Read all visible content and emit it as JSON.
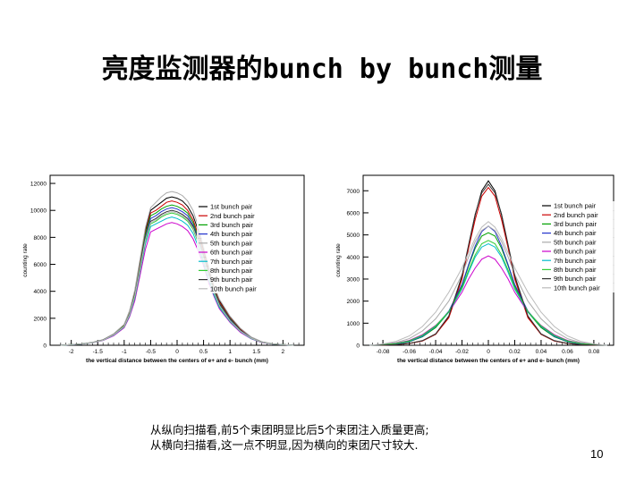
{
  "slide": {
    "title": "亮度监测器的bunch by bunch测量",
    "caption_line1": "从纵向扫描看,前5个束团明显比后5个束团注入质量更高;",
    "caption_line2": "从横向扫描看,这一点不明显,因为横向的束团尺寸较大.",
    "page_number": "10"
  },
  "chart_data": [
    {
      "type": "line",
      "xlabel": "the vertical distance between the centers of e+ and e- bunch (mm)",
      "ylabel": "counting rate",
      "xlim": [
        -2.4,
        2.4
      ],
      "ylim": [
        0,
        12600
      ],
      "xticks": [
        -2,
        -1.5,
        -1,
        -0.5,
        0,
        0.5,
        1,
        1.5,
        2
      ],
      "xtick_labels": [
        "-2",
        "-1.5",
        "-1",
        "-0.5",
        "0",
        "0.5",
        "1",
        "1.5",
        "2"
      ],
      "yticks": [
        0,
        2000,
        4000,
        6000,
        8000,
        10000,
        12000
      ],
      "ytick_labels": [
        "0",
        "2000",
        "4000",
        "6000",
        "8000",
        "10000",
        "12000"
      ],
      "legend_position": "top-right",
      "legend": [
        "1st bunch pair",
        "2nd bunch pair",
        "3rd bunch pair",
        "4th bunch pair",
        "5th bunch pair",
        "6th bunch pair",
        "7th bunch pair",
        "8th bunch pair",
        "9th bunch pair",
        "10th bunch pair"
      ],
      "x": [
        -2.2,
        -2.0,
        -1.8,
        -1.6,
        -1.4,
        -1.2,
        -1.0,
        -0.9,
        -0.8,
        -0.7,
        -0.6,
        -0.5,
        -0.4,
        -0.3,
        -0.2,
        -0.1,
        0.0,
        0.1,
        0.2,
        0.3,
        0.4,
        0.5,
        0.6,
        0.7,
        0.8,
        1.0,
        1.2,
        1.4,
        1.6,
        1.8,
        2.0,
        2.2
      ],
      "series": [
        {
          "color": "#000000",
          "values": [
            0,
            50,
            100,
            200,
            400,
            800,
            1500,
            2500,
            4000,
            6200,
            8500,
            10000,
            10300,
            10600,
            10900,
            11000,
            10900,
            10700,
            10300,
            9600,
            8500,
            7100,
            5600,
            4300,
            3300,
            2100,
            1200,
            600,
            250,
            100,
            50,
            0
          ]
        },
        {
          "color": "#cc0000",
          "values": [
            0,
            50,
            100,
            200,
            400,
            800,
            1500,
            2400,
            3900,
            6000,
            8300,
            9800,
            10000,
            10300,
            10600,
            10700,
            10600,
            10400,
            10000,
            9300,
            8200,
            6900,
            5400,
            4200,
            3200,
            2000,
            1150,
            580,
            240,
            100,
            50,
            0
          ]
        },
        {
          "color": "#00a000",
          "values": [
            0,
            50,
            100,
            200,
            400,
            800,
            1450,
            2350,
            3800,
            5900,
            8200,
            9600,
            9800,
            10100,
            10300,
            10400,
            10300,
            10100,
            9800,
            9100,
            8000,
            6700,
            5300,
            4100,
            3100,
            1950,
            1100,
            560,
            230,
            100,
            50,
            0
          ]
        },
        {
          "color": "#2233cc",
          "values": [
            0,
            50,
            100,
            190,
            380,
            780,
            1400,
            2300,
            3700,
            5800,
            8000,
            9400,
            9600,
            9900,
            10100,
            10200,
            10100,
            9900,
            9600,
            8900,
            7900,
            6600,
            5200,
            4000,
            3050,
            1900,
            1080,
            550,
            230,
            100,
            50,
            0
          ]
        },
        {
          "color": "#aaaaaa",
          "values": [
            0,
            50,
            110,
            220,
            420,
            850,
            1550,
            2550,
            4100,
            6400,
            8700,
            10200,
            10600,
            11000,
            11300,
            11400,
            11300,
            11100,
            10700,
            10000,
            8800,
            7300,
            5800,
            4400,
            3400,
            2150,
            1250,
            620,
            260,
            110,
            50,
            0
          ]
        },
        {
          "color": "#cc00cc",
          "values": [
            0,
            40,
            90,
            180,
            350,
            700,
            1300,
            2100,
            3300,
            5200,
            7100,
            8400,
            8600,
            8800,
            9000,
            9100,
            9000,
            8800,
            8500,
            7900,
            7000,
            5900,
            4600,
            3600,
            2700,
            1700,
            950,
            480,
            200,
            90,
            40,
            0
          ]
        },
        {
          "color": "#00bbcc",
          "values": [
            0,
            40,
            95,
            190,
            370,
            740,
            1350,
            2200,
            3500,
            5500,
            7500,
            8800,
            9000,
            9200,
            9400,
            9500,
            9400,
            9200,
            8900,
            8300,
            7300,
            6100,
            4800,
            3700,
            2800,
            1750,
            1000,
            500,
            210,
            95,
            40,
            0
          ]
        },
        {
          "color": "#33cc33",
          "values": [
            0,
            45,
            100,
            195,
            380,
            760,
            1380,
            2250,
            3600,
            5600,
            7700,
            9000,
            9200,
            9500,
            9700,
            9800,
            9700,
            9500,
            9200,
            8600,
            7600,
            6300,
            5000,
            3850,
            2900,
            1800,
            1030,
            520,
            220,
            98,
            45,
            0
          ]
        },
        {
          "color": "#333333",
          "values": [
            0,
            45,
            100,
            200,
            390,
            780,
            1420,
            2300,
            3700,
            5800,
            7900,
            9200,
            9400,
            9700,
            9900,
            10000,
            9900,
            9700,
            9400,
            8800,
            7800,
            6500,
            5100,
            3950,
            3000,
            1850,
            1060,
            540,
            225,
            100,
            45,
            0
          ]
        },
        {
          "color": "#bbbbbb",
          "values": [
            0,
            45,
            98,
            195,
            380,
            770,
            1400,
            2280,
            3650,
            5700,
            7800,
            9100,
            9300,
            9600,
            9800,
            9900,
            9800,
            9600,
            9300,
            8700,
            7700,
            6400,
            5050,
            3900,
            2950,
            1820,
            1040,
            530,
            220,
            98,
            45,
            0
          ]
        }
      ]
    },
    {
      "type": "line",
      "xlabel": "the vertical distance between the centers of e+ and e- bunch (mm)",
      "ylabel": "counting rate",
      "xlim": [
        -0.095,
        0.095
      ],
      "ylim": [
        0,
        7700
      ],
      "xticks": [
        -0.08,
        -0.06,
        -0.04,
        -0.02,
        0,
        0.02,
        0.04,
        0.06,
        0.08
      ],
      "xtick_labels": [
        "-0.08",
        "-0.06",
        "-0.04",
        "-0.02",
        "0",
        "0.02",
        "0.04",
        "0.06",
        "0.08"
      ],
      "yticks": [
        0,
        1000,
        2000,
        3000,
        4000,
        5000,
        6000,
        7000
      ],
      "ytick_labels": [
        "0",
        "1000",
        "2000",
        "3000",
        "4000",
        "5000",
        "6000",
        "7000"
      ],
      "legend_position": "top-right",
      "legend": [
        "1st bunch pair",
        "2nd bunch pair",
        "3rd bunch pair",
        "4th bunch pair",
        "5th bunch pair",
        "6th bunch pair",
        "7th bunch pair",
        "8th bunch pair",
        "9th bunch pair",
        "10th bunch pair"
      ],
      "x": [
        -0.09,
        -0.08,
        -0.07,
        -0.06,
        -0.05,
        -0.04,
        -0.03,
        -0.02,
        -0.015,
        -0.01,
        -0.005,
        0.0,
        0.005,
        0.01,
        0.015,
        0.02,
        0.03,
        0.04,
        0.05,
        0.06,
        0.07,
        0.08,
        0.09
      ],
      "series": [
        {
          "color": "#000000",
          "values": [
            0,
            10,
            30,
            80,
            200,
            500,
            1300,
            3100,
            4500,
            5900,
            7000,
            7450,
            7000,
            5900,
            4500,
            3100,
            1300,
            500,
            200,
            80,
            30,
            10,
            0
          ]
        },
        {
          "color": "#cc0000",
          "values": [
            0,
            10,
            30,
            80,
            200,
            500,
            1250,
            3000,
            4400,
            5700,
            6750,
            7150,
            6750,
            5700,
            4400,
            3000,
            1250,
            500,
            200,
            80,
            30,
            10,
            0
          ]
        },
        {
          "color": "#00a000",
          "values": [
            0,
            20,
            60,
            160,
            380,
            800,
            1500,
            2700,
            3600,
            4400,
            4950,
            5100,
            4950,
            4400,
            3600,
            2700,
            1500,
            800,
            380,
            160,
            60,
            20,
            0
          ]
        },
        {
          "color": "#2233cc",
          "values": [
            0,
            20,
            60,
            170,
            400,
            850,
            1550,
            2750,
            3650,
            4500,
            5150,
            5400,
            5150,
            4500,
            3650,
            2750,
            1550,
            850,
            400,
            170,
            60,
            20,
            0
          ]
        },
        {
          "color": "#aaaaaa",
          "values": [
            0,
            40,
            120,
            300,
            650,
            1200,
            2000,
            3200,
            4000,
            4700,
            5200,
            5400,
            5200,
            4700,
            4000,
            3200,
            2000,
            1200,
            650,
            300,
            120,
            40,
            0
          ]
        },
        {
          "color": "#cc00cc",
          "values": [
            0,
            30,
            90,
            220,
            480,
            900,
            1500,
            2400,
            3000,
            3500,
            3900,
            4050,
            3900,
            3500,
            3000,
            2400,
            1500,
            900,
            480,
            220,
            90,
            30,
            0
          ]
        },
        {
          "color": "#00bbcc",
          "values": [
            0,
            25,
            75,
            190,
            430,
            860,
            1500,
            2550,
            3300,
            4000,
            4450,
            4600,
            4450,
            4000,
            3300,
            2550,
            1500,
            860,
            430,
            190,
            75,
            25,
            0
          ]
        },
        {
          "color": "#33cc33",
          "values": [
            0,
            25,
            80,
            200,
            450,
            880,
            1520,
            2600,
            3400,
            4100,
            4600,
            4750,
            4600,
            4100,
            3400,
            2600,
            1520,
            880,
            450,
            200,
            80,
            25,
            0
          ]
        },
        {
          "color": "#333333",
          "values": [
            0,
            10,
            30,
            85,
            210,
            520,
            1330,
            3150,
            4550,
            5950,
            6900,
            7300,
            6900,
            5950,
            4550,
            3150,
            1330,
            520,
            210,
            85,
            30,
            10,
            0
          ]
        },
        {
          "color": "#bbbbbb",
          "values": [
            0,
            60,
            180,
            420,
            850,
            1500,
            2400,
            3500,
            4200,
            4850,
            5350,
            5600,
            5350,
            4850,
            4200,
            3500,
            2400,
            1500,
            850,
            420,
            180,
            60,
            0
          ]
        }
      ]
    }
  ]
}
